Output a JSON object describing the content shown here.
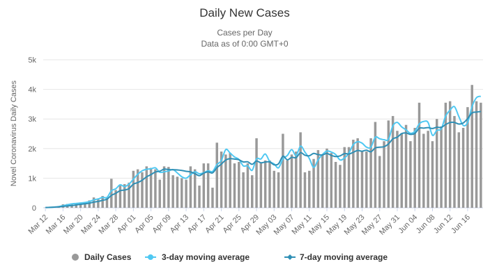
{
  "chart_data": {
    "type": "bar",
    "title": "Daily New Cases",
    "subtitle_line1": "Cases per Day",
    "subtitle_line2": "Data as of 0:00 GMT+0",
    "ylabel": "Novel Coronavirus Daily Cases",
    "xlabel": "",
    "ylim": [
      0,
      5000
    ],
    "y_ticks": [
      0,
      1000,
      2000,
      3000,
      4000,
      5000
    ],
    "y_tick_labels": [
      "0",
      "1k",
      "2k",
      "3k",
      "4k",
      "5k"
    ],
    "grid": true,
    "legend_position": "bottom",
    "x_labels": [
      "Mar 12",
      "Mar 16",
      "Mar 20",
      "Mar 24",
      "Mar 28",
      "Apr 01",
      "Apr 05",
      "Apr 09",
      "Apr 13",
      "Apr 17",
      "Apr 21",
      "Apr 25",
      "Apr 29",
      "May 03",
      "May 07",
      "May 11",
      "May 15",
      "May 19",
      "May 23",
      "May 27",
      "May 31",
      "Jun 04",
      "Jun 08",
      "Jun 12",
      "Jun 16"
    ],
    "categories": [
      "Mar 12",
      "Mar 13",
      "Mar 14",
      "Mar 15",
      "Mar 16",
      "Mar 17",
      "Mar 18",
      "Mar 19",
      "Mar 20",
      "Mar 21",
      "Mar 22",
      "Mar 23",
      "Mar 24",
      "Mar 25",
      "Mar 26",
      "Mar 27",
      "Mar 28",
      "Mar 29",
      "Mar 30",
      "Mar 31",
      "Apr 01",
      "Apr 02",
      "Apr 03",
      "Apr 04",
      "Apr 05",
      "Apr 06",
      "Apr 07",
      "Apr 08",
      "Apr 09",
      "Apr 10",
      "Apr 11",
      "Apr 12",
      "Apr 13",
      "Apr 14",
      "Apr 15",
      "Apr 16",
      "Apr 17",
      "Apr 18",
      "Apr 19",
      "Apr 20",
      "Apr 21",
      "Apr 22",
      "Apr 23",
      "Apr 24",
      "Apr 25",
      "Apr 26",
      "Apr 27",
      "Apr 28",
      "Apr 29",
      "Apr 30",
      "May 01",
      "May 02",
      "May 03",
      "May 04",
      "May 05",
      "May 06",
      "May 07",
      "May 08",
      "May 09",
      "May 10",
      "May 11",
      "May 12",
      "May 13",
      "May 14",
      "May 15",
      "May 16",
      "May 17",
      "May 18",
      "May 19",
      "May 20",
      "May 21",
      "May 22",
      "May 23",
      "May 24",
      "May 25",
      "May 26",
      "May 27",
      "May 28",
      "May 29",
      "May 30",
      "May 31",
      "Jun 01",
      "Jun 02",
      "Jun 03",
      "Jun 04",
      "Jun 05",
      "Jun 06",
      "Jun 07",
      "Jun 08",
      "Jun 09",
      "Jun 10",
      "Jun 11",
      "Jun 12",
      "Jun 13",
      "Jun 14",
      "Jun 15",
      "Jun 16",
      "Jun 17",
      "Jun 18",
      "Jun 19"
    ],
    "series": [
      {
        "name": "Daily Cases",
        "type": "bar",
        "color": "#999999",
        "values": [
          10,
          20,
          40,
          60,
          120,
          130,
          150,
          160,
          180,
          200,
          250,
          350,
          300,
          400,
          350,
          980,
          600,
          750,
          800,
          850,
          1250,
          1300,
          1200,
          1400,
          1350,
          1300,
          950,
          1400,
          1380,
          1100,
          1050,
          1000,
          950,
          1400,
          1300,
          750,
          1500,
          1500,
          680,
          2200,
          1900,
          1800,
          1850,
          1500,
          1550,
          1200,
          1500,
          1100,
          2350,
          1500,
          1600,
          1600,
          1250,
          1200,
          2500,
          1600,
          1800,
          1900,
          2550,
          1200,
          1250,
          1650,
          1950,
          1800,
          2000,
          1850,
          1550,
          1450,
          2050,
          2050,
          2300,
          2350,
          1900,
          1900,
          2350,
          2900,
          1750,
          2250,
          2950,
          3100,
          2600,
          2500,
          2800,
          2250,
          2700,
          3550,
          2500,
          2600,
          2250,
          3000,
          2750,
          3550,
          3600,
          3100,
          2550,
          2700,
          3400,
          4150,
          3600,
          3550
        ]
      },
      {
        "name": "3-day moving average",
        "type": "line",
        "color": "#4fc8f2",
        "values": [
          10,
          15,
          23,
          40,
          73,
          103,
          133,
          147,
          163,
          180,
          210,
          267,
          300,
          350,
          350,
          577,
          643,
          777,
          717,
          800,
          967,
          1133,
          1250,
          1300,
          1317,
          1350,
          1200,
          1217,
          1243,
          1293,
          1177,
          1050,
          1000,
          1117,
          1217,
          1150,
          1183,
          1250,
          1227,
          1460,
          1593,
          1967,
          1850,
          1717,
          1633,
          1417,
          1417,
          1267,
          1650,
          1650,
          1817,
          1567,
          1483,
          1350,
          1650,
          1767,
          1967,
          1767,
          2083,
          1883,
          1667,
          1367,
          1617,
          1800,
          1917,
          1883,
          1800,
          1617,
          1683,
          1850,
          2133,
          2233,
          2183,
          2050,
          2050,
          2383,
          2333,
          2300,
          2317,
          2767,
          2883,
          2733,
          2633,
          2517,
          2583,
          2833,
          2917,
          2883,
          2450,
          2617,
          2667,
          3100,
          3300,
          3417,
          3083,
          2783,
          2883,
          3417,
          3717,
          3767
        ]
      },
      {
        "name": "7-day moving average",
        "type": "line",
        "color": "#2f8fb5",
        "values": [
          10,
          15,
          23,
          33,
          50,
          63,
          76,
          97,
          117,
          134,
          156,
          190,
          216,
          254,
          290,
          422,
          490,
          580,
          600,
          650,
          800,
          852,
          931,
          1046,
          1122,
          1211,
          1236,
          1307,
          1290,
          1285,
          1280,
          1262,
          1233,
          1212,
          1154,
          1086,
          1171,
          1214,
          1179,
          1357,
          1476,
          1614,
          1661,
          1647,
          1623,
          1549,
          1553,
          1471,
          1579,
          1521,
          1546,
          1550,
          1451,
          1486,
          1743,
          1620,
          1706,
          1693,
          1862,
          1776,
          1757,
          1836,
          1797,
          1786,
          1837,
          1770,
          1732,
          1754,
          1832,
          1816,
          1875,
          1936,
          1911,
          1945,
          1893,
          2021,
          2048,
          2064,
          2157,
          2329,
          2385,
          2507,
          2529,
          2479,
          2512,
          2686,
          2692,
          2707,
          2679,
          2721,
          2715,
          2814,
          2880,
          2883,
          2829,
          2866,
          3011,
          3206,
          3233,
          3254
        ]
      }
    ]
  },
  "colors": {
    "bar": "#999999",
    "ma3": "#4fc8f2",
    "ma7": "#2f8fb5",
    "grid": "#e6e6e6",
    "axis": "#ccd6eb"
  }
}
